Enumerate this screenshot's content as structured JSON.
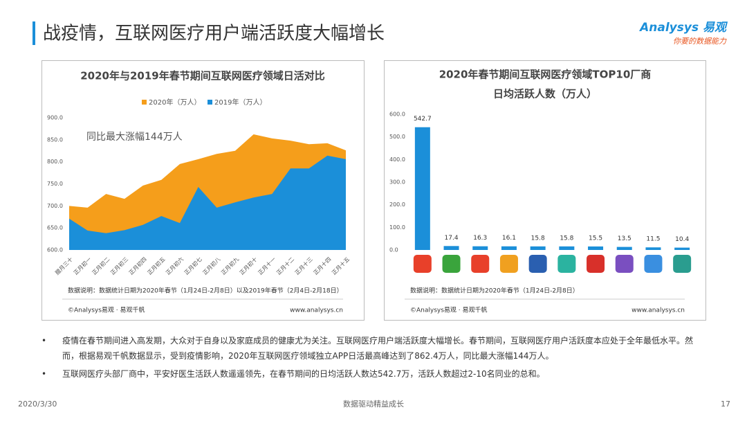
{
  "header": {
    "title": "战疫情，互联网医疗用户端活跃度大幅增长",
    "logo": "Analysys 易观",
    "slogan": "你要的数据能力"
  },
  "chart_data": [
    {
      "type": "area",
      "title": "2020年与2019年春节期间互联网医疗领域日活对比",
      "categories": [
        "腊月三十",
        "正月初一",
        "正月初二",
        "正月初三",
        "正月初四",
        "正月初五",
        "正月初六",
        "正月初七",
        "正月初八",
        "正月初九",
        "正月初十",
        "正月十一",
        "正月十二",
        "正月十三",
        "正月十四",
        "正月十五"
      ],
      "series": [
        {
          "name": "2020年（万人）",
          "color": "#f59e1b",
          "values": [
            700,
            696,
            727,
            716,
            746,
            759,
            795,
            806,
            818,
            825,
            862.4,
            853,
            848,
            840,
            842,
            826
          ]
        },
        {
          "name": "2019年（万人）",
          "color": "#1b8fd9",
          "values": [
            671,
            644,
            638,
            645,
            657,
            677,
            661,
            743,
            696,
            708,
            719,
            727,
            785,
            785,
            814,
            806
          ]
        }
      ],
      "ylim": [
        600,
        900
      ],
      "yticks": [
        {
          "value": 600,
          "label": "600.0"
        },
        {
          "value": 650,
          "label": "650.0"
        },
        {
          "value": 700,
          "label": "700.0"
        },
        {
          "value": 750,
          "label": "750.0"
        },
        {
          "value": 800,
          "label": "800.0"
        },
        {
          "value": 850,
          "label": "850.0"
        },
        {
          "value": 900,
          "label": "900.0"
        }
      ],
      "legend": "top",
      "annotation": "同比最大涨幅144万人",
      "note": "数据说明：数据统计日期为2020年春节（1月24日-2月8日）以及2019年春节（2月4日-2月18日）",
      "source": "©Analysys易观 · 易观千帆",
      "website": "www.analysys.cn"
    },
    {
      "type": "bar",
      "title": "2020年春节期间互联网医疗领域TOP10厂商",
      "subtitle": "日均活跃人数（万人）",
      "categories": [
        null,
        null,
        null,
        null,
        null,
        null,
        null,
        null,
        null,
        null
      ],
      "values": [
        542.7,
        17.4,
        16.3,
        16.1,
        15.8,
        15.8,
        15.5,
        13.5,
        11.5,
        10.4
      ],
      "color": "#1b8fd9",
      "ylim": [
        0,
        600
      ],
      "yticks": [
        {
          "value": 0,
          "label": "0.0"
        },
        {
          "value": 100,
          "label": "100.0"
        },
        {
          "value": 200,
          "label": "200.0"
        },
        {
          "value": 300,
          "label": "300.0"
        },
        {
          "value": 400,
          "label": "400.0"
        },
        {
          "value": 500,
          "label": "500.0"
        },
        {
          "value": 600,
          "label": "600.0"
        }
      ],
      "note": "数据说明：数据统计日期为2020年春节（1月24日-2月8日）",
      "source": "©Analysys易观 · 易观千帆",
      "website": "www.analysys.cn"
    }
  ],
  "bullets": [
    "疫情在春节期间进入高发期，大众对于自身以及家庭成员的健康尤为关注。互联网医疗用户端活跃度大幅增长。春节期间，互联网医疗用户活跃度本应处于全年最低水平。然而，根据易观千帆数据显示，受到疫情影响，2020年互联网医疗领域独立APP日活最高峰达到了862.4万人，同比最大涨幅144万人。",
    "互联网医疗头部厂商中，平安好医生活跃人数遥遥领先，在春节期间的日均活跃人数达542.7万，活跃人数超过2-10名同业的总和。"
  ],
  "footer": {
    "date": "2020/3/30",
    "slogan": "数据驱动精益成长",
    "page": "17"
  }
}
